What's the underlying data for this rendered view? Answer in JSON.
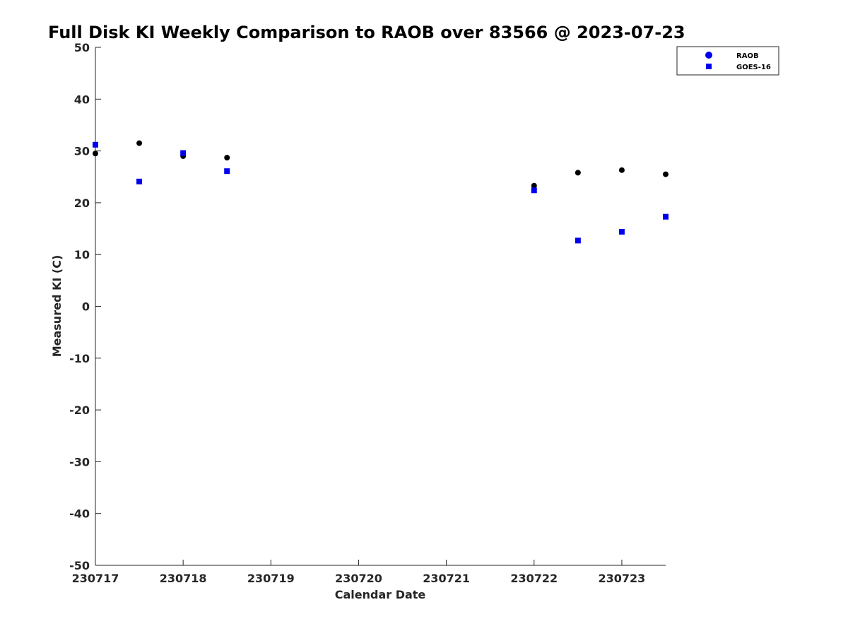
{
  "chart_data": {
    "type": "scatter",
    "title": "Full Disk KI Weekly Comparison to RAOB over 83566 @ 2023-07-23",
    "xlabel": "Calendar Date",
    "ylabel": "Measured KI (C)",
    "xlim": [
      0,
      6.5
    ],
    "ylim": [
      -50,
      50
    ],
    "x_ticks": [
      0,
      1,
      2,
      3,
      4,
      5,
      6
    ],
    "x_tick_labels": [
      "230717",
      "230718",
      "230719",
      "230720",
      "230721",
      "230722",
      "230723"
    ],
    "y_ticks": [
      -50,
      -40,
      -30,
      -20,
      -10,
      0,
      10,
      20,
      30,
      40,
      50
    ],
    "y_tick_labels": [
      "-50",
      "-40",
      "-30",
      "-20",
      "-10",
      "0",
      "10",
      "20",
      "30",
      "40",
      "50"
    ],
    "legend_position": "top-right",
    "series": [
      {
        "name": "RAOB",
        "marker": "circle",
        "legend_color": "#0000ee",
        "point_color": "#000000",
        "x": [
          0,
          0.5,
          1,
          1.5,
          5,
          5.5,
          6,
          6.5
        ],
        "values": [
          29.5,
          31.5,
          29.0,
          28.7,
          23.3,
          25.8,
          26.3,
          25.5
        ]
      },
      {
        "name": "GOES-16",
        "marker": "square",
        "legend_color": "#0000ee",
        "point_color": "#0000ee",
        "x": [
          0,
          0.5,
          1,
          1.5,
          5,
          5.5,
          6,
          6.5
        ],
        "values": [
          31.2,
          24.1,
          29.6,
          26.1,
          22.4,
          12.7,
          14.4,
          17.3
        ]
      }
    ]
  }
}
